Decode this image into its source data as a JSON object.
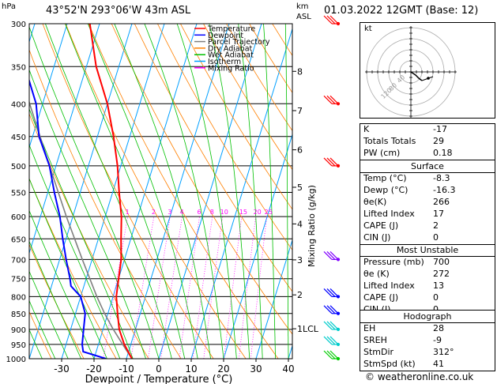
{
  "header": {
    "pressure_unit": "hPa",
    "location": "43°52'N  293°06'W  43m  ASL",
    "height_unit": "km",
    "height_ref": "ASL",
    "datetime": "01.03.2022  12GMT  (Base: 12)"
  },
  "chart_data": {
    "type": "skew-t",
    "xlabel": "Dewpoint / Temperature (°C)",
    "ylabel_right": "Mixing Ratio (g/kg)",
    "pressure_levels": [
      300,
      350,
      400,
      450,
      500,
      550,
      600,
      650,
      700,
      750,
      800,
      850,
      900,
      950,
      1000
    ],
    "temperature_ticks": [
      -30,
      -20,
      -10,
      0,
      10,
      20,
      30,
      40
    ],
    "height_ticks_km": [
      {
        "label": "8",
        "p": 356
      },
      {
        "label": "7",
        "p": 410
      },
      {
        "label": "6",
        "p": 472
      },
      {
        "label": "5",
        "p": 540
      },
      {
        "label": "4",
        "p": 616
      },
      {
        "label": "3",
        "p": 701
      },
      {
        "label": "2",
        "p": 795
      },
      {
        "label": "1LCL",
        "p": 898
      }
    ],
    "mixing_ratio_labels": [
      "1",
      "2",
      "3",
      "4",
      "6",
      "8",
      "10",
      "15",
      "20",
      "25"
    ],
    "mixing_ratio_values": [
      1,
      2,
      3,
      4,
      6,
      8,
      10,
      15,
      20,
      25
    ],
    "legend": [
      {
        "name": "Temperature",
        "color": "#ff0000"
      },
      {
        "name": "Dewpoint",
        "color": "#0000ff"
      },
      {
        "name": "Parcel Trajectory",
        "color": "#808080"
      },
      {
        "name": "Dry Adiabat",
        "color": "#ff8000"
      },
      {
        "name": "Wet Adiabat",
        "color": "#00c000"
      },
      {
        "name": "Isotherm",
        "color": "#00a0ff"
      },
      {
        "name": "Mixing Ratio",
        "color": "#ff00ff"
      }
    ],
    "temperature_profile": [
      {
        "p": 1000,
        "t": -8.3
      },
      {
        "p": 950,
        "t": -12
      },
      {
        "p": 900,
        "t": -15
      },
      {
        "p": 850,
        "t": -17
      },
      {
        "p": 800,
        "t": -19
      },
      {
        "p": 750,
        "t": -20
      },
      {
        "p": 700,
        "t": -21
      },
      {
        "p": 650,
        "t": -23
      },
      {
        "p": 600,
        "t": -25
      },
      {
        "p": 550,
        "t": -28
      },
      {
        "p": 500,
        "t": -31
      },
      {
        "p": 450,
        "t": -35
      },
      {
        "p": 400,
        "t": -40
      },
      {
        "p": 350,
        "t": -47
      },
      {
        "p": 300,
        "t": -53
      }
    ],
    "dewpoint_profile": [
      {
        "p": 1000,
        "t": -16.3
      },
      {
        "p": 975,
        "t": -24
      },
      {
        "p": 950,
        "t": -25
      },
      {
        "p": 900,
        "t": -26
      },
      {
        "p": 850,
        "t": -27
      },
      {
        "p": 800,
        "t": -30
      },
      {
        "p": 770,
        "t": -34
      },
      {
        "p": 750,
        "t": -35
      },
      {
        "p": 700,
        "t": -38
      },
      {
        "p": 650,
        "t": -41
      },
      {
        "p": 600,
        "t": -44
      },
      {
        "p": 550,
        "t": -48
      },
      {
        "p": 500,
        "t": -52
      },
      {
        "p": 450,
        "t": -58
      },
      {
        "p": 400,
        "t": -62
      },
      {
        "p": 350,
        "t": -69
      },
      {
        "p": 300,
        "t": -75
      }
    ],
    "parcel_profile": [
      {
        "p": 1000,
        "t": -8.3
      },
      {
        "p": 950,
        "t": -12.5
      },
      {
        "p": 898,
        "t": -17
      },
      {
        "p": 850,
        "t": -21
      },
      {
        "p": 800,
        "t": -25
      },
      {
        "p": 700,
        "t": -33
      },
      {
        "p": 600,
        "t": -42
      },
      {
        "p": 500,
        "t": -52
      },
      {
        "p": 400,
        "t": -64
      },
      {
        "p": 300,
        "t": -78
      }
    ],
    "wind_barbs": [
      {
        "p": 1000,
        "color": "#00cc00"
      },
      {
        "p": 950,
        "color": "#00cccc"
      },
      {
        "p": 900,
        "color": "#00cccc"
      },
      {
        "p": 850,
        "color": "#0000ff"
      },
      {
        "p": 800,
        "color": "#0000ff"
      },
      {
        "p": 700,
        "color": "#8000ff"
      },
      {
        "p": 500,
        "color": "#ff0000"
      },
      {
        "p": 400,
        "color": "#ff0000"
      },
      {
        "p": 300,
        "color": "#ff0000"
      }
    ]
  },
  "hodograph": {
    "label": "kt",
    "ring_labels": [
      "120",
      "80",
      "40"
    ]
  },
  "indices": [
    {
      "label": "K",
      "value": "-17"
    },
    {
      "label": "Totals Totals",
      "value": "29"
    },
    {
      "label": "PW (cm)",
      "value": "0.18"
    }
  ],
  "surface": {
    "title": "Surface",
    "rows": [
      {
        "label": "Temp (°C)",
        "value": "-8.3"
      },
      {
        "label": "Dewp (°C)",
        "value": "-16.3"
      },
      {
        "label": "θe(K)",
        "value": "266"
      },
      {
        "label": "Lifted Index",
        "value": "17"
      },
      {
        "label": "CAPE (J)",
        "value": "2"
      },
      {
        "label": "CIN (J)",
        "value": "0"
      }
    ]
  },
  "most_unstable": {
    "title": "Most Unstable",
    "rows": [
      {
        "label": "Pressure (mb)",
        "value": "700"
      },
      {
        "label": "θe (K)",
        "value": "272"
      },
      {
        "label": "Lifted Index",
        "value": "13"
      },
      {
        "label": "CAPE (J)",
        "value": "0"
      },
      {
        "label": "CIN (J)",
        "value": "0"
      }
    ]
  },
  "hodograph_stats": {
    "title": "Hodograph",
    "rows": [
      {
        "label": "EH",
        "value": "28"
      },
      {
        "label": "SREH",
        "value": "-9"
      },
      {
        "label": "StmDir",
        "value": "312°"
      },
      {
        "label": "StmSpd (kt)",
        "value": "41"
      }
    ]
  },
  "footer": {
    "copyright": "© weatheronline.co.uk"
  }
}
